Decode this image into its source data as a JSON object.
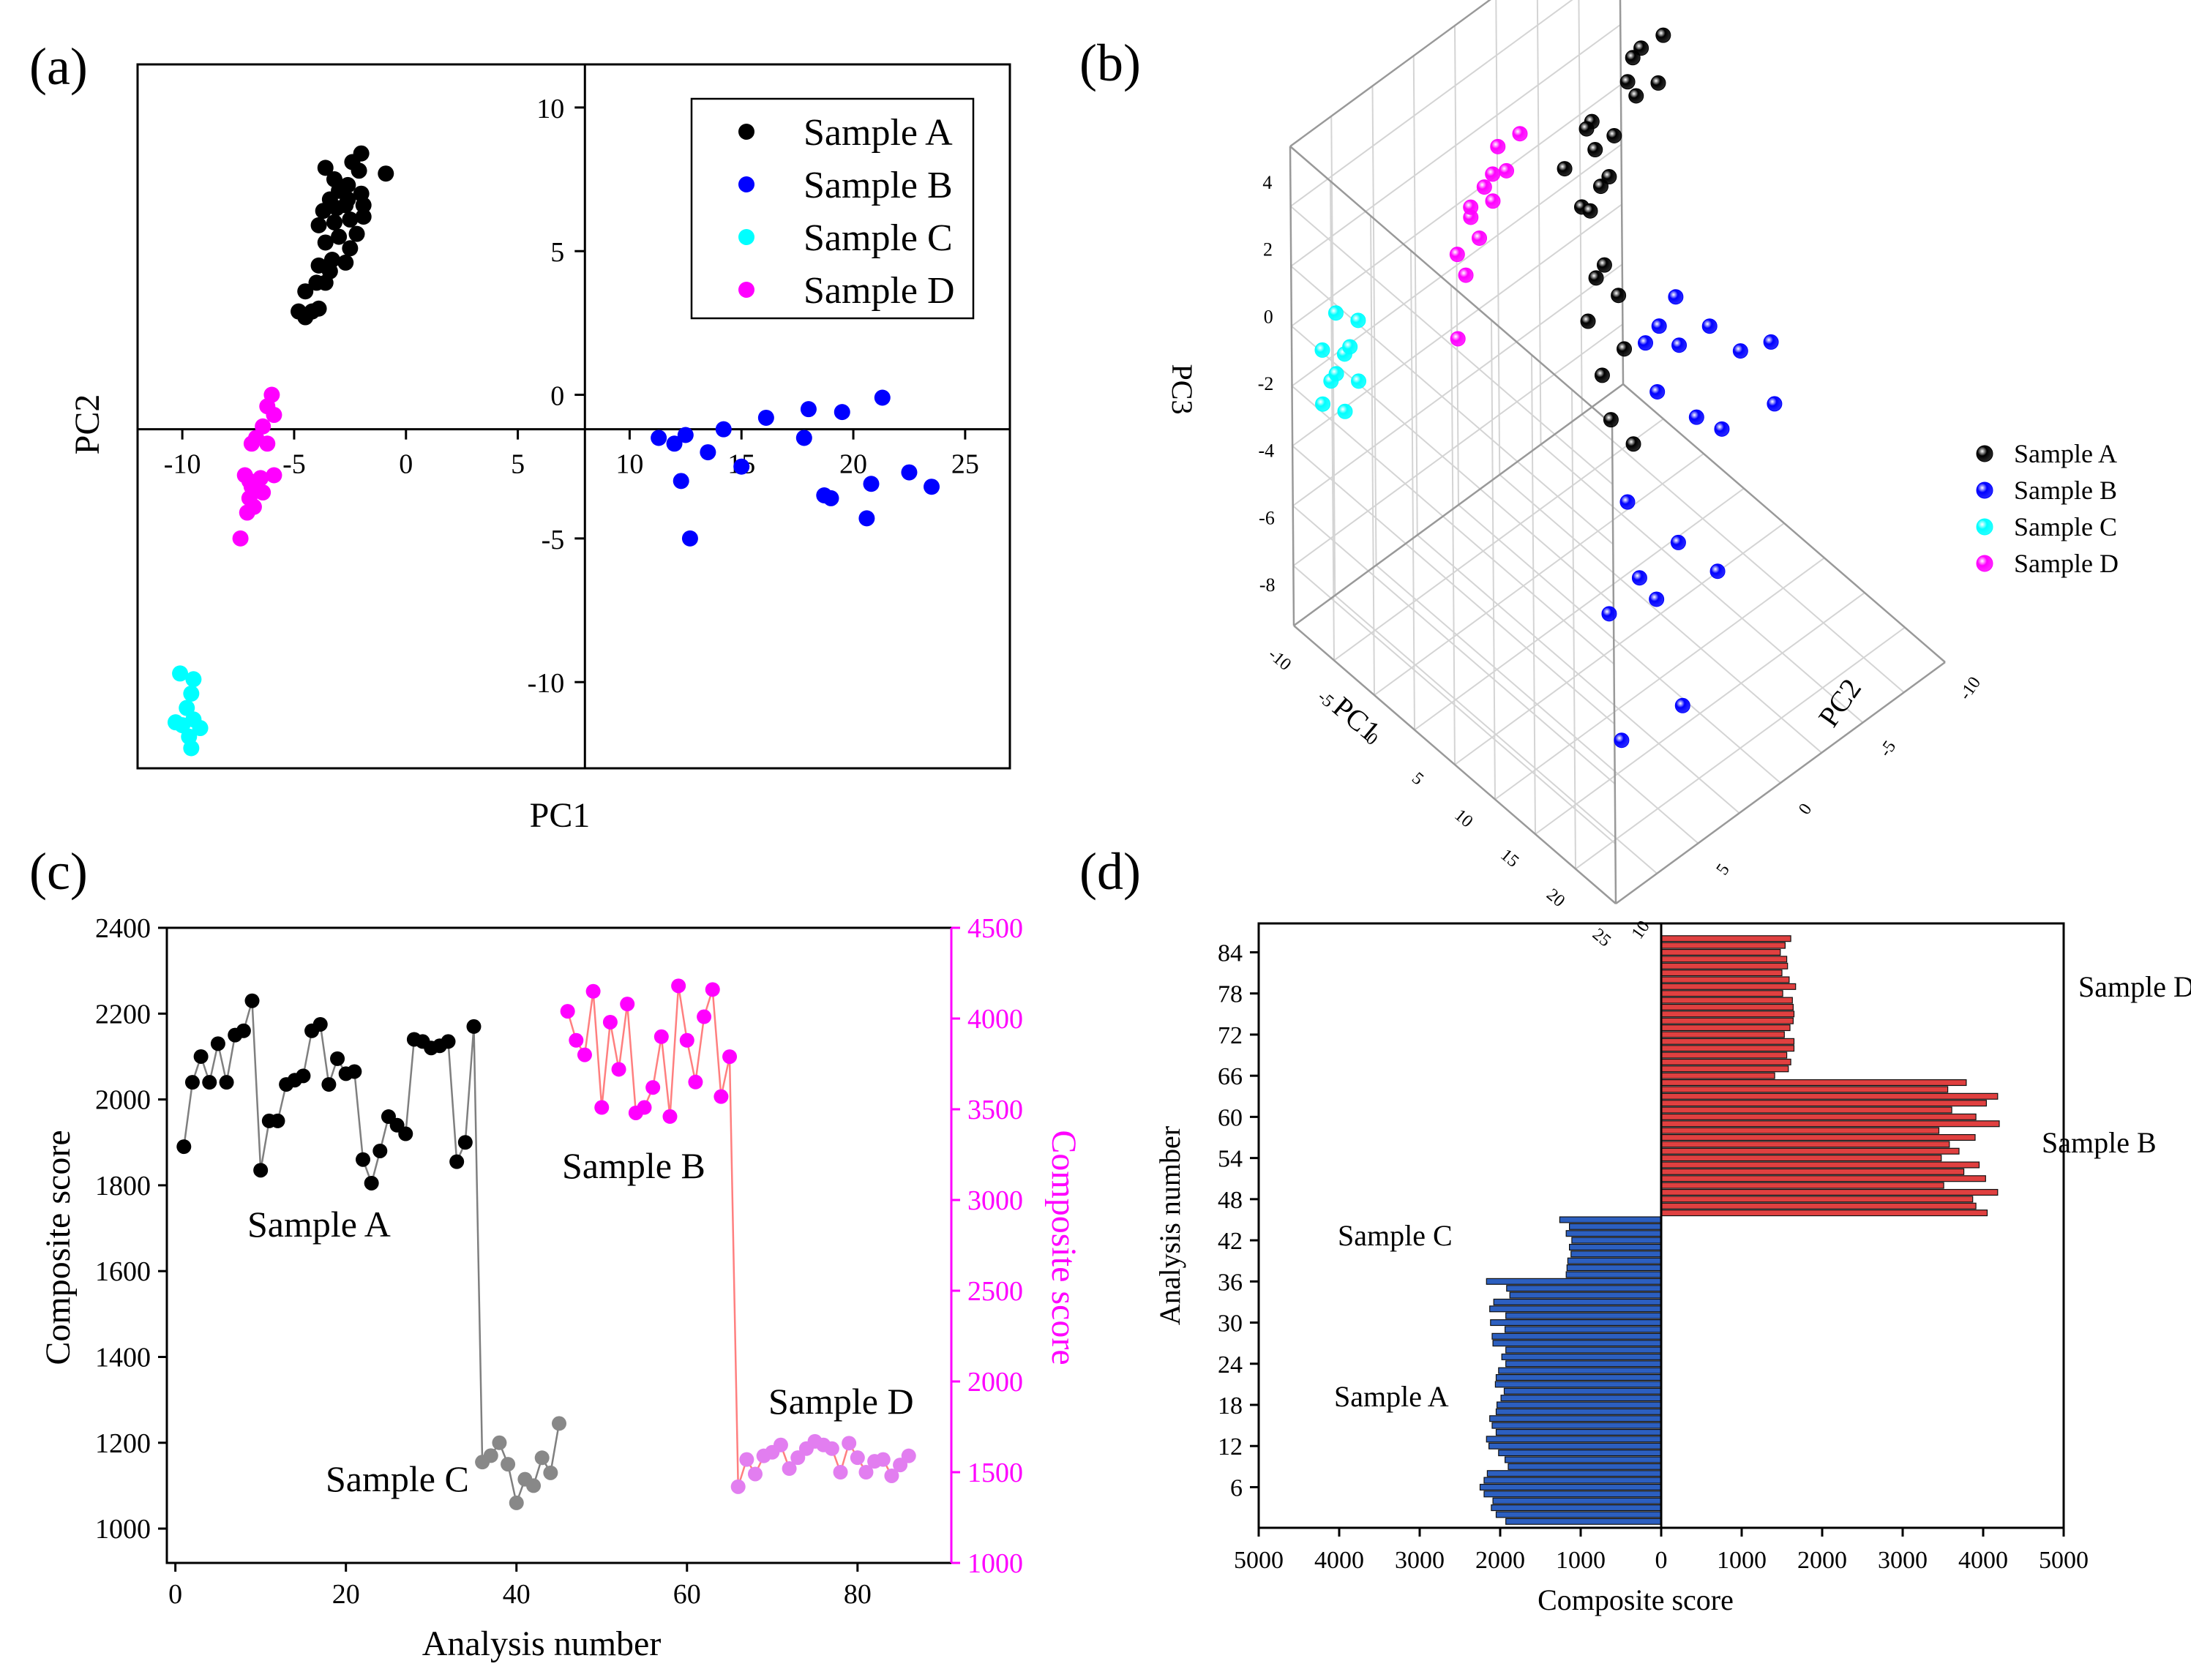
{
  "figure": {
    "labels": {
      "a": "(a)",
      "b": "(b)",
      "c": "(c)",
      "d": "(d)"
    }
  },
  "colors": {
    "sampleA": "#000000",
    "sampleB": "#0000ff",
    "sampleC": "#00ffff",
    "sampleD": "#ff00ff",
    "lineA": "#7f7f7f",
    "lineB": "#ff7f7f",
    "grayC": "#888888",
    "violetD": "#e27ef0",
    "barRed": "#e04040",
    "barBlue": "#2c5fc0",
    "magentaAxis": "#ff00ff"
  },
  "chart_data": [
    {
      "id": "a",
      "type": "scatter",
      "title": "",
      "xlabel": "PC1",
      "ylabel": "PC2",
      "xlim": [
        -12,
        27
      ],
      "ylim": [
        -13,
        11.5
      ],
      "xticks": [
        "-10",
        "-5",
        "0",
        "5",
        "10",
        "15",
        "20",
        "25"
      ],
      "yticks": [
        "10",
        "5",
        "0",
        "-5",
        "-10"
      ],
      "legend_position": "top-right",
      "series": [
        {
          "name": "Sample A",
          "color": "#000000",
          "points": [
            [
              -4.8,
              2.9
            ],
            [
              -4.5,
              2.7
            ],
            [
              -4.2,
              2.9
            ],
            [
              -3.9,
              3.0
            ],
            [
              -4.5,
              3.6
            ],
            [
              -4.0,
              3.9
            ],
            [
              -3.6,
              3.9
            ],
            [
              -3.4,
              4.3
            ],
            [
              -3.9,
              4.5
            ],
            [
              -3.3,
              4.7
            ],
            [
              -2.7,
              4.6
            ],
            [
              -3.6,
              5.3
            ],
            [
              -2.5,
              5.1
            ],
            [
              -3.0,
              5.5
            ],
            [
              -2.2,
              5.6
            ],
            [
              -3.9,
              5.9
            ],
            [
              -3.2,
              6.0
            ],
            [
              -2.5,
              6.1
            ],
            [
              -1.9,
              6.2
            ],
            [
              -3.7,
              6.4
            ],
            [
              -3.1,
              6.5
            ],
            [
              -2.7,
              6.6
            ],
            [
              -1.9,
              6.6
            ],
            [
              -3.4,
              6.8
            ],
            [
              -2.6,
              6.8
            ],
            [
              -3.0,
              7.1
            ],
            [
              -2.0,
              7.0
            ],
            [
              -2.6,
              7.3
            ],
            [
              -3.2,
              7.5
            ],
            [
              -3.6,
              7.9
            ],
            [
              -2.1,
              7.8
            ],
            [
              -2.4,
              8.1
            ],
            [
              -2.0,
              8.4
            ],
            [
              -0.9,
              7.7
            ]
          ]
        },
        {
          "name": "Sample B",
          "color": "#0000ff",
          "points": [
            [
              11.3,
              -1.5
            ],
            [
              12.0,
              -1.7
            ],
            [
              12.5,
              -1.4
            ],
            [
              13.5,
              -2.0
            ],
            [
              14.2,
              -1.2
            ],
            [
              15.0,
              -2.5
            ],
            [
              16.1,
              -0.8
            ],
            [
              17.8,
              -1.5
            ],
            [
              18.0,
              -0.5
            ],
            [
              19.5,
              -0.6
            ],
            [
              21.3,
              -0.1
            ],
            [
              12.3,
              -3.0
            ],
            [
              18.7,
              -3.5
            ],
            [
              19.0,
              -3.6
            ],
            [
              20.8,
              -3.1
            ],
            [
              22.5,
              -2.7
            ],
            [
              23.5,
              -3.2
            ],
            [
              12.7,
              -5.0
            ],
            [
              20.6,
              -4.3
            ]
          ]
        },
        {
          "name": "Sample C",
          "color": "#00ffff",
          "points": [
            [
              -10.1,
              -9.7
            ],
            [
              -9.5,
              -9.9
            ],
            [
              -9.6,
              -10.4
            ],
            [
              -9.8,
              -10.9
            ],
            [
              -10.3,
              -11.4
            ],
            [
              -10.0,
              -11.5
            ],
            [
              -9.5,
              -11.3
            ],
            [
              -9.2,
              -11.6
            ],
            [
              -9.7,
              -11.9
            ],
            [
              -9.6,
              -12.3
            ]
          ]
        },
        {
          "name": "Sample D",
          "color": "#ff00ff",
          "points": [
            [
              -6.0,
              0.0
            ],
            [
              -6.2,
              -0.4
            ],
            [
              -5.9,
              -0.7
            ],
            [
              -6.4,
              -1.1
            ],
            [
              -6.7,
              -1.5
            ],
            [
              -6.2,
              -1.7
            ],
            [
              -7.2,
              -2.8
            ],
            [
              -6.5,
              -2.9
            ],
            [
              -5.9,
              -2.8
            ],
            [
              -6.9,
              -3.2
            ],
            [
              -6.4,
              -3.4
            ],
            [
              -7.0,
              -3.6
            ],
            [
              -6.8,
              -3.9
            ],
            [
              -7.1,
              -4.1
            ],
            [
              -7.4,
              -5.0
            ],
            [
              -6.9,
              -1.7
            ],
            [
              -7.0,
              -3.0
            ]
          ]
        }
      ]
    },
    {
      "id": "b",
      "type": "scatter3d",
      "title": "",
      "xlabel": "PC1",
      "ylabel": "PC2",
      "zlabel": "PC3",
      "xticks": [
        "-10",
        "-5",
        "0",
        "5",
        "10",
        "15",
        "20",
        "25"
      ],
      "yticks": [
        "-10",
        "-5",
        "0",
        "5",
        "10"
      ],
      "zticks": [
        "4",
        "2",
        "0",
        "-2",
        "-4",
        "-6",
        "-8"
      ],
      "legend_position": "right",
      "series": [
        {
          "name": "Sample A",
          "color": "#000000",
          "points": [
            [
              -3,
              7,
              4.5
            ],
            [
              -2,
              8,
              4.8
            ],
            [
              -4,
              7,
              4.0
            ],
            [
              -3,
              6,
              3.8
            ],
            [
              -2,
              6,
              3.6
            ],
            [
              -1,
              7,
              3.9
            ],
            [
              -4,
              4,
              3.0
            ],
            [
              -3,
              3,
              3.3
            ],
            [
              -2,
              3,
              2.9
            ],
            [
              -3,
              5,
              2.5
            ],
            [
              -4,
              2,
              2.2
            ],
            [
              -2,
              2,
              1.5
            ],
            [
              -1,
              2,
              1.6
            ],
            [
              -3,
              4,
              1.3
            ],
            [
              -2,
              4,
              1.8
            ],
            [
              -1,
              3,
              -0.3
            ],
            [
              -2,
              3,
              -0.9
            ],
            [
              -1,
              4,
              -1.5
            ],
            [
              -3,
              3,
              -2.4
            ],
            [
              -2,
              5,
              -3.6
            ],
            [
              -3,
              4,
              -4.3
            ],
            [
              -2,
              4,
              -5.4
            ],
            [
              -1,
              5,
              -6.2
            ]
          ]
        },
        {
          "name": "Sample B",
          "color": "#0000ff",
          "points": [
            [
              14,
              -1,
              3.2
            ],
            [
              16,
              -2,
              2.5
            ],
            [
              18,
              -1,
              3.2
            ],
            [
              20,
              0,
              2.6
            ],
            [
              22,
              1,
              3.0
            ],
            [
              12,
              -2,
              1.7
            ],
            [
              15,
              -3,
              1.2
            ],
            [
              18,
              -2,
              0.8
            ],
            [
              21,
              -2,
              1.1
            ],
            [
              13,
              -4,
              -2.2
            ],
            [
              19,
              -4,
              -2.1
            ],
            [
              22,
              -3,
              -2.6
            ],
            [
              16,
              -5,
              -3.5
            ],
            [
              18,
              -5,
              -3.7
            ],
            [
              14,
              -6,
              -4.7
            ],
            [
              21,
              -5,
              -6.2
            ],
            [
              17,
              -7,
              -7.5
            ],
            [
              12,
              -1,
              1.9
            ],
            [
              24,
              0,
              1.9
            ]
          ]
        },
        {
          "name": "Sample C",
          "color": "#00ffff",
          "points": [
            [
              -10,
              -11,
              0.5
            ],
            [
              -9,
              -10,
              0.2
            ],
            [
              -10,
              -12,
              -0.3
            ],
            [
              -9,
              -11,
              -0.5
            ],
            [
              -10,
              -10,
              -0.8
            ],
            [
              -9,
              -12,
              -1.0
            ],
            [
              -10,
              -11,
              -1.3
            ],
            [
              -9,
              -10,
              -1.6
            ],
            [
              -10,
              -12,
              -1.9
            ],
            [
              -9,
              -11,
              -2.2
            ]
          ]
        },
        {
          "name": "Sample D",
          "color": "#ff00ff",
          "points": [
            [
              -6,
              0,
              3.4
            ],
            [
              -7,
              -1,
              3.1
            ],
            [
              -6,
              -1,
              2.6
            ],
            [
              -7,
              -2,
              2.2
            ],
            [
              -6,
              -2,
              2.0
            ],
            [
              -7,
              -3,
              1.6
            ],
            [
              -6,
              -3,
              1.2
            ],
            [
              -7,
              -4,
              0.8
            ],
            [
              -6,
              -4,
              0.4
            ],
            [
              -7,
              -3,
              1.9
            ],
            [
              -6,
              -2,
              2.8
            ],
            [
              -7,
              -4,
              -1.7
            ]
          ]
        }
      ]
    },
    {
      "id": "c",
      "type": "line",
      "title": "",
      "xlabel": "Analysis number",
      "ylabel": "Composite score",
      "ylabel_right": "Composite score",
      "xlim": [
        -1,
        91
      ],
      "ylim": [
        920,
        2400
      ],
      "ylim_right": [
        1000,
        4500
      ],
      "xticks": [
        "0",
        "20",
        "40",
        "60",
        "80"
      ],
      "yticks": [
        "1000",
        "1200",
        "1400",
        "1600",
        "1800",
        "2000",
        "2200",
        "2400"
      ],
      "yticks_right": [
        "1000",
        "1500",
        "2000",
        "2500",
        "3000",
        "3500",
        "4000",
        "4500"
      ],
      "annotations": [
        "Sample A",
        "Sample B",
        "Sample C",
        "Sample D"
      ],
      "series": [
        {
          "name": "Sample A",
          "axis": "left",
          "color": "#000000",
          "line": "#7f7f7f",
          "x": [
            1,
            2,
            3,
            4,
            5,
            6,
            7,
            8,
            9,
            10,
            11,
            12,
            13,
            14,
            15,
            16,
            17,
            18,
            19,
            20,
            21,
            22,
            23,
            24,
            25,
            26,
            27,
            28,
            29,
            30,
            31,
            32,
            33,
            34,
            35
          ],
          "y": [
            1890,
            2040,
            2100,
            2040,
            2130,
            2040,
            2150,
            2160,
            2230,
            1835,
            1950,
            1950,
            2035,
            2045,
            2055,
            2160,
            2175,
            2035,
            2095,
            2060,
            2065,
            1860,
            1805,
            1880,
            1960,
            1940,
            1920,
            2140,
            2135,
            2120,
            2125,
            2135,
            1855,
            1900,
            2170
          ]
        },
        {
          "name": "Sample C",
          "axis": "left",
          "color": "#888888",
          "line": "#7f7f7f",
          "x": [
            36,
            37,
            38,
            39,
            40,
            41,
            42,
            43,
            44,
            45
          ],
          "y": [
            1155,
            1170,
            1200,
            1150,
            1060,
            1115,
            1100,
            1165,
            1130,
            1245
          ]
        },
        {
          "name": "Sample B",
          "axis": "right",
          "color": "#ff00ff",
          "line": "#ff7f7f",
          "x": [
            46,
            47,
            48,
            49,
            50,
            51,
            52,
            53,
            54,
            55,
            56,
            57,
            58,
            59,
            60,
            61,
            62,
            63,
            64,
            65
          ],
          "y": [
            4040,
            3880,
            3800,
            4150,
            3510,
            3980,
            3720,
            4080,
            3480,
            3510,
            3620,
            3900,
            3460,
            4180,
            3880,
            3650,
            4010,
            4160,
            3570,
            3790
          ]
        },
        {
          "name": "Sample D",
          "axis": "right",
          "color": "#e27ef0",
          "line": "#ff7f7f",
          "x": [
            66,
            67,
            68,
            69,
            70,
            71,
            72,
            73,
            74,
            75,
            76,
            77,
            78,
            79,
            80,
            81,
            82,
            83,
            84,
            85,
            86
          ],
          "y": [
            1420,
            1570,
            1490,
            1590,
            1610,
            1650,
            1520,
            1580,
            1630,
            1670,
            1650,
            1630,
            1500,
            1660,
            1580,
            1500,
            1560,
            1570,
            1480,
            1540,
            1590
          ]
        }
      ]
    },
    {
      "id": "d",
      "type": "bar",
      "orientation": "horizontal",
      "title": "",
      "xlabel": "Composite score",
      "ylabel": "Analysis number",
      "xlim": [
        -5000,
        5000
      ],
      "xticks": [
        "5000",
        "4000",
        "3000",
        "2000",
        "1000",
        "0",
        "1000",
        "2000",
        "3000",
        "4000",
        "5000"
      ],
      "yticks": [
        "6",
        "12",
        "18",
        "24",
        "30",
        "36",
        "42",
        "48",
        "54",
        "60",
        "66",
        "72",
        "78",
        "84"
      ],
      "annotations": [
        "Sample D",
        "Sample B",
        "Sample C",
        "Sample A"
      ],
      "categories_from": 1,
      "values": [
        -1930,
        -2050,
        -2110,
        -2090,
        -2200,
        -2250,
        -2200,
        -2160,
        -1900,
        -1940,
        -2020,
        -2140,
        -2170,
        -2050,
        -2100,
        -2130,
        -2050,
        -2040,
        -1990,
        -1950,
        -2060,
        -2050,
        -2020,
        -1930,
        -1980,
        -1930,
        -2090,
        -2100,
        -1940,
        -2120,
        -1930,
        -2130,
        -2080,
        -1880,
        -1920,
        -2170,
        -1180,
        -1170,
        -1160,
        -1120,
        -1140,
        -1110,
        -1180,
        -1140,
        -1260,
        4050,
        3910,
        3870,
        4180,
        3510,
        4030,
        3760,
        3950,
        3480,
        3700,
        3580,
        3900,
        3450,
        4200,
        3910,
        3610,
        4040,
        4180,
        3560,
        3790,
        1410,
        1580,
        1610,
        1560,
        1650,
        1650,
        1530,
        1600,
        1640,
        1650,
        1640,
        1630,
        1510,
        1670,
        1590,
        1500,
        1570,
        1560,
        1480,
        1540,
        1610
      ]
    }
  ]
}
